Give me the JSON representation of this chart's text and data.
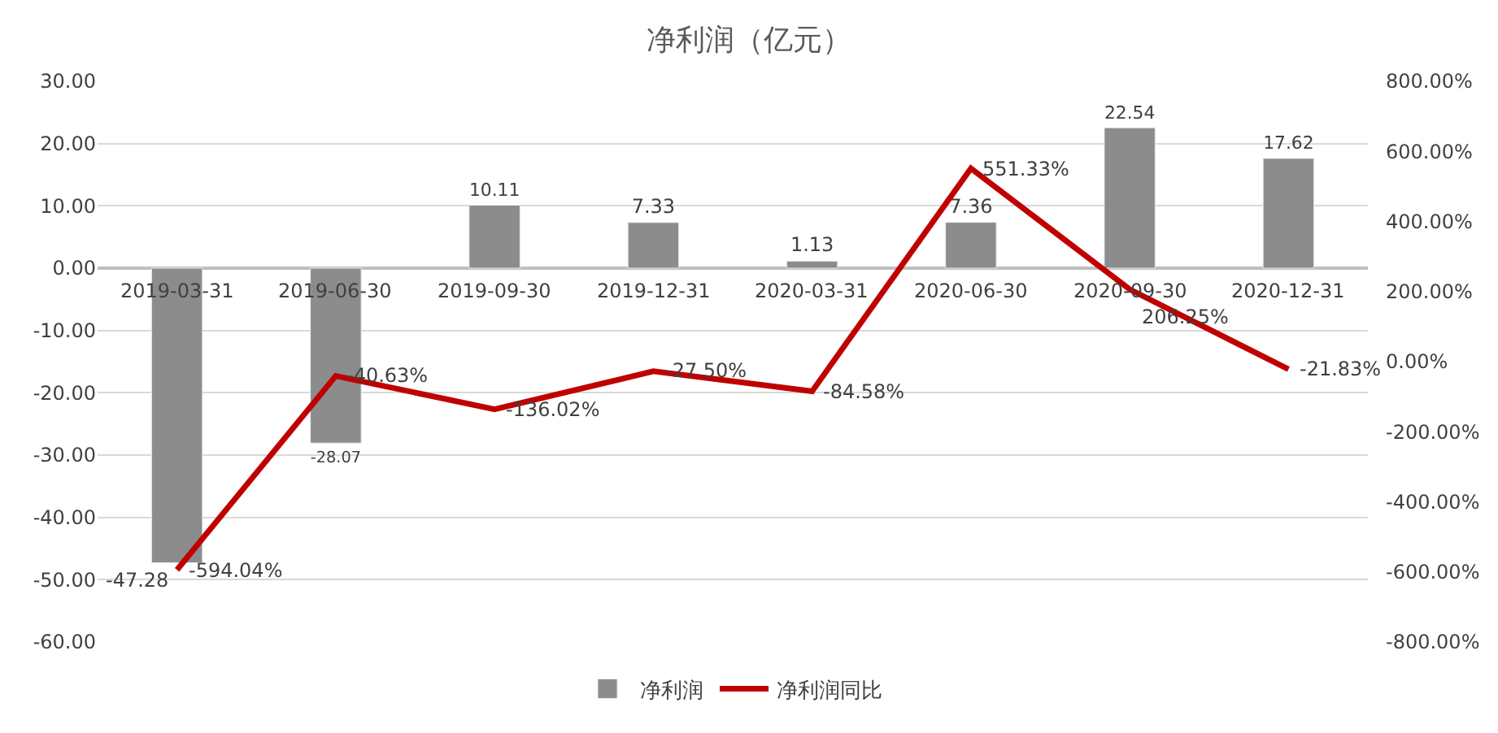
{
  "chart_data": {
    "type": "bar",
    "title": "净利润（亿元）",
    "categories": [
      "2019-03-31",
      "2019-06-30",
      "2019-09-30",
      "2019-12-31",
      "2020-03-31",
      "2020-06-30",
      "2020-09-30",
      "2020-12-31"
    ],
    "series": [
      {
        "name": "净利润",
        "color": "#8c8c8c",
        "values": [
          -47.28,
          -28.07,
          10.11,
          7.33,
          1.13,
          7.36,
          22.54,
          17.62
        ],
        "value_labels": [
          "-47.28",
          "-28.07",
          "10.11",
          "7.33",
          "1.13",
          "7.36",
          "22.54",
          "17.62"
        ]
      },
      {
        "name": "净利润同比",
        "type": "line",
        "axis": "y2",
        "color": "#c00000",
        "values": [
          -594.04,
          -40.63,
          -136.02,
          -27.5,
          -84.58,
          551.33,
          206.25,
          -21.83
        ],
        "value_labels": [
          "-594.04%",
          "-40.63%",
          "-136.02%",
          "-27.50%",
          "-84.58%",
          "551.33%",
          "206.25%",
          "-21.83%"
        ]
      }
    ],
    "ylim": [
      -60,
      30
    ],
    "yticks": [
      {
        "value": -60,
        "label": "-60.00"
      },
      {
        "value": -50,
        "label": "-50.00"
      },
      {
        "value": -40,
        "label": "-40.00"
      },
      {
        "value": -30,
        "label": "-30.00"
      },
      {
        "value": -20,
        "label": "-20.00"
      },
      {
        "value": -10,
        "label": "-10.00"
      },
      {
        "value": 0,
        "label": "0.00"
      },
      {
        "value": 10,
        "label": "10.00"
      },
      {
        "value": 20,
        "label": "20.00"
      },
      {
        "value": 30,
        "label": "30.00"
      }
    ],
    "y2lim": [
      -800,
      800
    ],
    "y2ticks": [
      {
        "value": -800,
        "label": "-800.00%"
      },
      {
        "value": -600,
        "label": "-600.00%"
      },
      {
        "value": -400,
        "label": "-400.00%"
      },
      {
        "value": -200,
        "label": "-200.00%"
      },
      {
        "value": 0,
        "label": "0.00%"
      },
      {
        "value": 200,
        "label": "200.00%"
      },
      {
        "value": 400,
        "label": "400.00%"
      },
      {
        "value": 600,
        "label": "600.00%"
      },
      {
        "value": 800,
        "label": "800.00%"
      }
    ],
    "grid": "y",
    "legend": "bottom",
    "marker": "none",
    "line_style": "solid"
  }
}
